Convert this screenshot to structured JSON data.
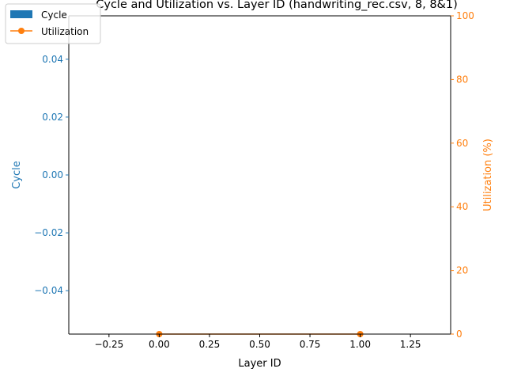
{
  "chart_data": {
    "type": "bar",
    "title": "Cycle and Utilization vs. Layer ID (handwriting_rec.csv, 8, 8&1)",
    "xlabel": "Layer ID",
    "ylabel_left": "Cycle",
    "ylabel_right": "Utilization (%)",
    "x": [
      0,
      1
    ],
    "xlim": [
      -0.45,
      1.45
    ],
    "ylim_left": [
      -0.055,
      0.055
    ],
    "ylim_right": [
      0,
      100
    ],
    "x_ticks": [
      -0.25,
      0.0,
      0.25,
      0.5,
      0.75,
      1.0,
      1.25
    ],
    "x_tick_labels": [
      "−0.25",
      "0.00",
      "0.25",
      "0.50",
      "0.75",
      "1.00",
      "1.25"
    ],
    "y_left_ticks": [
      -0.04,
      -0.02,
      0.0,
      0.02,
      0.04
    ],
    "y_left_tick_labels": [
      "−0.04",
      "−0.02",
      "0.00",
      "0.02",
      "0.04"
    ],
    "y_right_ticks": [
      0,
      20,
      40,
      60,
      80,
      100
    ],
    "y_right_tick_labels": [
      "0",
      "20",
      "40",
      "60",
      "80",
      "100"
    ],
    "series": [
      {
        "name": "Cycle",
        "kind": "bar",
        "axis": "left",
        "values": [
          0,
          0
        ],
        "color": "#1f77b4"
      },
      {
        "name": "Utilization",
        "kind": "line",
        "axis": "right",
        "values": [
          0,
          0
        ],
        "color": "#ff7f0e"
      }
    ],
    "legend": "top-left",
    "grid": false
  }
}
